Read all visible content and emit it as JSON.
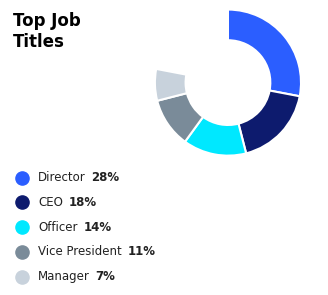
{
  "chart_data": {
    "type": "pie",
    "title": "Top Job\nTitles",
    "categories": [
      "Director",
      "CEO",
      "Officer",
      "Vice President",
      "Manager"
    ],
    "values": [
      28,
      18,
      14,
      11,
      7
    ],
    "value_labels": [
      "28%",
      "18%",
      "14%",
      "11%",
      "7%"
    ],
    "colors": [
      "#2B5EFF",
      "#0D1B6E",
      "#00E8FF",
      "#7A8B99",
      "#C8D2DC"
    ],
    "legend": "lower left"
  }
}
